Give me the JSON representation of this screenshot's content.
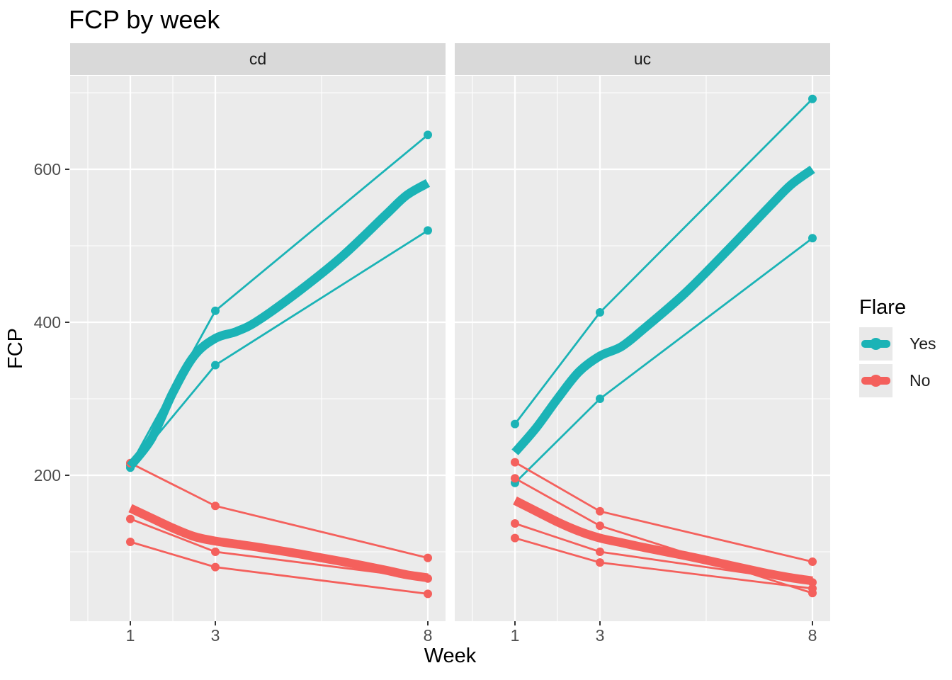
{
  "title": "FCP by week",
  "legend": {
    "title": "Flare",
    "items": [
      {
        "label": "Yes",
        "color": "#1BB3B6"
      },
      {
        "label": "No",
        "color": "#F4605C"
      }
    ]
  },
  "colors": {
    "yes": "#1BB3B6",
    "no": "#F4605C",
    "panel_bg": "#EBEBEB",
    "strip_bg": "#D9D9D9",
    "grid": "#FFFFFF",
    "tick_text": "#4D4D4D",
    "tick_mark": "#333333",
    "legend_key_bg": "#E9E9E9"
  },
  "chart_data": {
    "type": "line",
    "title": "FCP by week",
    "xlabel": "Week",
    "ylabel": "FCP",
    "x_ticks": [
      1,
      3,
      8
    ],
    "x_tick_labels": [
      "1",
      "3",
      "8"
    ],
    "y_ticks": [
      600,
      400,
      200
    ],
    "y_tick_labels": [
      "600",
      "400",
      "200"
    ],
    "x_minor": [
      0,
      2,
      5.5
    ],
    "y_minor": [
      700,
      500,
      300,
      100
    ],
    "xlim": [
      -0.42,
      8.45
    ],
    "ylim": [
      10,
      722
    ],
    "grid": true,
    "legend_title": "Flare",
    "legend_position": "right",
    "groups": [
      "Yes",
      "No"
    ],
    "facets": [
      {
        "name": "cd",
        "series": [
          {
            "group": "Yes",
            "kind": "subject",
            "x": [
              1,
              3,
              8
            ],
            "y": [
              213,
              415,
              645
            ]
          },
          {
            "group": "Yes",
            "kind": "subject",
            "x": [
              1,
              3,
              8
            ],
            "y": [
              210,
              344,
              520
            ]
          },
          {
            "group": "No",
            "kind": "subject",
            "x": [
              1,
              3,
              8
            ],
            "y": [
              216,
              160,
              92
            ]
          },
          {
            "group": "No",
            "kind": "subject",
            "x": [
              1,
              3,
              8
            ],
            "y": [
              143,
              100,
              65
            ]
          },
          {
            "group": "No",
            "kind": "subject",
            "x": [
              1,
              3,
              8
            ],
            "y": [
              113,
              80,
              45
            ]
          },
          {
            "group": "Yes",
            "kind": "smooth",
            "x": [
              1,
              1.5,
              2,
              2.5,
              3,
              3.5,
              4,
              5,
              6,
              7,
              7.5,
              8
            ],
            "y": [
              212,
              248,
              308,
              356,
              379,
              388,
              402,
              442,
              487,
              540,
              566,
              582
            ]
          },
          {
            "group": "No",
            "kind": "smooth",
            "x": [
              1,
              1.5,
              2,
              2.5,
              3,
              3.5,
              4,
              5,
              6,
              7,
              7.5,
              8
            ],
            "y": [
              157,
              144,
              131,
              120,
              114,
              110,
              106,
              97,
              87,
              76,
              70,
              66
            ]
          }
        ]
      },
      {
        "name": "uc",
        "series": [
          {
            "group": "Yes",
            "kind": "subject",
            "x": [
              1,
              3,
              8
            ],
            "y": [
              267,
              413,
              692
            ]
          },
          {
            "group": "Yes",
            "kind": "subject",
            "x": [
              1,
              3,
              8
            ],
            "y": [
              190,
              300,
              510
            ]
          },
          {
            "group": "No",
            "kind": "subject",
            "x": [
              1,
              3,
              8
            ],
            "y": [
              217,
              153,
              87
            ]
          },
          {
            "group": "No",
            "kind": "subject",
            "x": [
              1,
              3,
              8
            ],
            "y": [
              196,
              134,
              46
            ]
          },
          {
            "group": "No",
            "kind": "subject",
            "x": [
              1,
              3,
              8
            ],
            "y": [
              137,
              100,
              60
            ]
          },
          {
            "group": "No",
            "kind": "subject",
            "x": [
              1,
              3,
              8
            ],
            "y": [
              118,
              86,
              52
            ]
          },
          {
            "group": "Yes",
            "kind": "smooth",
            "x": [
              1,
              1.5,
              2,
              2.5,
              3,
              3.5,
              4,
              5,
              6,
              7,
              7.5,
              8
            ],
            "y": [
              230,
              262,
              300,
              335,
              356,
              368,
              390,
              438,
              494,
              552,
              580,
              600
            ]
          },
          {
            "group": "No",
            "kind": "smooth",
            "x": [
              1,
              1.5,
              2,
              2.5,
              3,
              3.5,
              4,
              5,
              6,
              7,
              7.5,
              8
            ],
            "y": [
              167,
              153,
              139,
              127,
              118,
              112,
              106,
              95,
              83,
              71,
              66,
              62
            ]
          }
        ]
      }
    ]
  }
}
